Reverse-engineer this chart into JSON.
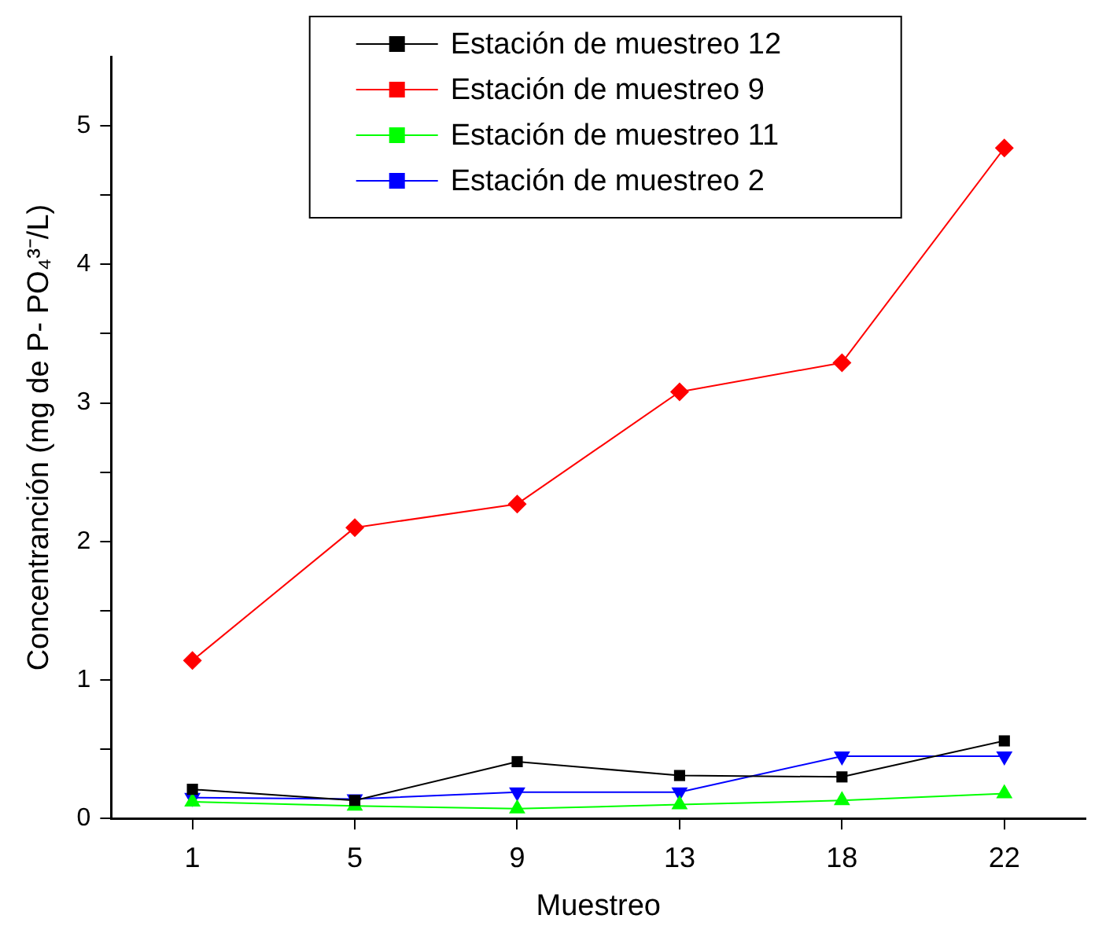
{
  "chart_data": {
    "type": "line",
    "xlabel": "Muestreo",
    "ylabel": "Concentranción (mg de P- PO₄³⁻/L)",
    "categories": [
      "1",
      "5",
      "9",
      "13",
      "18",
      "22"
    ],
    "series": [
      {
        "name": "Estación de muestreo 12",
        "color": "#000000",
        "marker": "square",
        "values": [
          0.21,
          0.13,
          0.41,
          0.31,
          0.3,
          0.56
        ]
      },
      {
        "name": "Estación de muestreo 9",
        "color": "#ff0000",
        "marker": "diamond",
        "values": [
          1.14,
          2.1,
          2.27,
          3.08,
          3.29,
          4.84
        ]
      },
      {
        "name": "Estación de muestreo 11",
        "color": "#00ff00",
        "marker": "triangle",
        "values": [
          0.12,
          0.09,
          0.07,
          0.1,
          0.13,
          0.18
        ]
      },
      {
        "name": "Estación de muestreo 2",
        "color": "#0000ff",
        "marker": "triangle-down",
        "values": [
          0.15,
          0.14,
          0.19,
          0.19,
          0.45,
          0.45
        ]
      }
    ],
    "ylim": [
      0,
      5.5
    ],
    "yticks": [
      0,
      {
        "value": 0.5,
        "label": null
      },
      1,
      {
        "value": 1.5,
        "label": null
      },
      2,
      {
        "value": 2.5,
        "label": null
      },
      3,
      {
        "value": 3.5,
        "label": null
      },
      4,
      {
        "value": 4.5,
        "label": null
      },
      5
    ],
    "grid": false,
    "legend": "top",
    "line_style": "solid"
  }
}
